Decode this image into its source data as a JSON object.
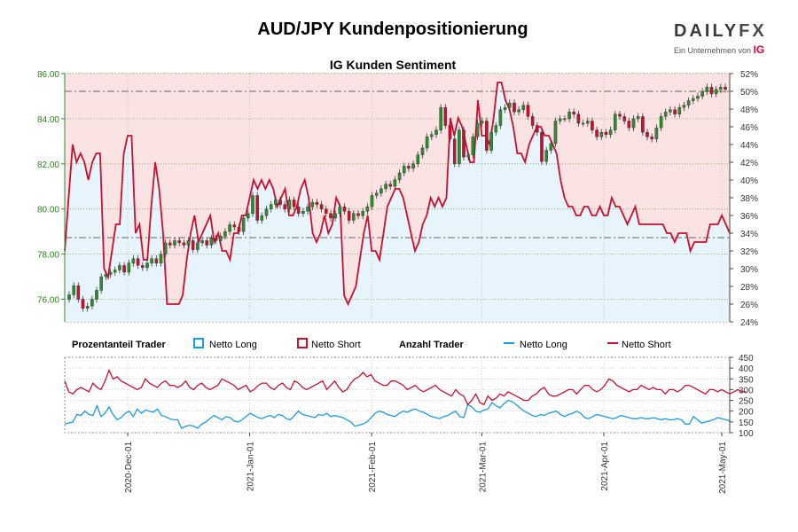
{
  "header": {
    "title": "AUD/JPY Kundenpositionierung",
    "logo_word_a": "DAILY",
    "logo_word_b": "FX",
    "logo_sub": "Ein Unternehmen von",
    "logo_ig": "IG"
  },
  "chart_data": [
    {
      "type": "line",
      "title": "IG Kunden Sentiment",
      "left_axis": {
        "ylim": [
          75,
          86
        ],
        "ticks": [
          "76.00",
          "78.00",
          "80.00",
          "82.00",
          "84.00",
          "86.00"
        ],
        "tick_values": [
          76,
          78,
          80,
          82,
          84,
          86
        ]
      },
      "right_axis": {
        "ylim": [
          24,
          52
        ],
        "ticks": [
          "24%",
          "26%",
          "28%",
          "30%",
          "32%",
          "34%",
          "36%",
          "38%",
          "40%",
          "42%",
          "44%",
          "46%",
          "48%",
          "50%",
          "52%"
        ],
        "tick_values": [
          24,
          26,
          28,
          30,
          32,
          34,
          36,
          38,
          40,
          42,
          44,
          46,
          48,
          50,
          52
        ]
      },
      "reference_lines_pct": [
        50,
        33.5
      ],
      "x_dates": [
        "2020-Dec-01",
        "2021-Jan-01",
        "2021-Feb-01",
        "2021-Mar-01",
        "2021-Apr-01",
        "2021-May-01"
      ],
      "x_date_day_index": [
        16,
        47,
        78,
        106,
        137,
        167
      ],
      "net_long_pct": [
        32,
        38,
        44,
        42,
        43,
        42,
        40,
        42,
        43,
        43,
        30,
        29,
        32,
        35,
        35,
        43,
        45,
        45,
        34,
        35,
        31,
        31,
        37,
        42,
        39,
        34,
        26,
        26,
        26,
        26,
        27,
        31,
        34,
        36,
        33,
        34,
        35,
        36,
        33,
        34,
        32,
        32,
        31,
        34,
        34,
        36,
        36,
        38,
        40,
        39,
        40,
        39,
        40,
        39,
        37,
        38,
        39,
        36,
        36,
        37,
        39,
        40,
        38,
        34,
        33,
        34,
        36,
        34,
        35,
        38,
        37,
        27,
        26,
        27,
        28,
        31,
        34,
        36,
        32,
        32,
        31,
        34,
        37,
        38,
        39,
        39,
        38,
        36,
        34,
        32,
        33,
        35,
        36,
        38,
        37,
        38,
        37,
        38,
        47,
        45,
        47,
        46,
        44,
        42,
        42,
        49,
        45,
        45,
        44,
        47,
        51,
        51,
        49,
        48,
        46,
        43,
        43,
        42,
        44,
        45,
        46,
        46,
        45,
        45,
        44,
        43,
        40,
        38,
        37,
        37,
        36,
        36,
        37,
        37,
        36,
        36,
        37,
        36,
        36,
        38,
        37,
        37,
        36,
        35,
        36,
        37,
        35,
        35,
        35,
        35,
        35,
        35,
        35,
        34,
        34,
        33,
        34,
        34,
        34,
        32,
        33,
        33,
        33,
        33,
        35,
        35,
        35,
        36,
        35,
        34
      ],
      "price_close": [
        76.2,
        76.6,
        76.0,
        75.6,
        75.7,
        76.0,
        76.4,
        77.0,
        77.1,
        77.2,
        77.3,
        77.5,
        77.2,
        77.6,
        77.8,
        77.5,
        77.4,
        77.6,
        77.8,
        77.6,
        78.0,
        78.5,
        78.4,
        78.6,
        78.5,
        78.4,
        78.6,
        78.2,
        78.5,
        78.6,
        78.4,
        78.7,
        78.6,
        78.8,
        79.0,
        79.3,
        79.2,
        79.0,
        79.6,
        79.8,
        80.6,
        79.5,
        79.7,
        80.0,
        80.2,
        80.4,
        80.2,
        80.0,
        80.4,
        80.1,
        79.8,
        79.9,
        80.1,
        80.3,
        80.2,
        80.0,
        79.8,
        79.6,
        79.8,
        80.1,
        79.9,
        79.5,
        79.8,
        79.7,
        79.9,
        80.1,
        80.6,
        80.7,
        80.9,
        81.1,
        81.0,
        81.3,
        81.6,
        81.9,
        81.8,
        82.0,
        82.4,
        82.7,
        83.2,
        83.3,
        83.5,
        84.5,
        83.7,
        83.1,
        82.0,
        83.5,
        82.3,
        82.4,
        83.2,
        83.8,
        83.9,
        82.6,
        83.4,
        83.7,
        84.4,
        84.5,
        84.7,
        84.3,
        84.4,
        84.6,
        84.1,
        83.7,
        83.4,
        82.1,
        82.6,
        82.9,
        83.9,
        84.0,
        84.0,
        84.3,
        84.2,
        83.8,
        83.8,
        83.9,
        83.5,
        83.2,
        83.4,
        83.3,
        83.5,
        84.2,
        84.1,
        83.9,
        83.6,
        84.0,
        84.1,
        83.4,
        83.2,
        83.1,
        83.6,
        84.1,
        84.3,
        84.4,
        84.2,
        84.5,
        84.6,
        84.8,
        84.9,
        85.0,
        85.2,
        85.4,
        85.1,
        85.3,
        85.4,
        85.3
      ],
      "legend": {
        "pct_title": "Prozentanteil Trader",
        "long": "Netto Long",
        "short": "Netto Short",
        "count_title": "Anzahl Trader"
      },
      "colors": {
        "long": "#1a9ae8",
        "short": "#c8102e",
        "long_fill": "#e8f4fb",
        "short_fill": "#fbe3e3",
        "price_up": "#2e8b2e",
        "price_down": "#c8102e"
      }
    },
    {
      "type": "line",
      "title": "Anzahl Trader",
      "ylim": [
        100,
        450
      ],
      "ticks": [
        "100",
        "150",
        "200",
        "250",
        "300",
        "350",
        "400",
        "450"
      ],
      "tick_values": [
        100,
        150,
        200,
        250,
        300,
        350,
        400,
        450
      ],
      "net_long_count": [
        140,
        145,
        150,
        185,
        180,
        200,
        185,
        180,
        225,
        175,
        190,
        220,
        185,
        160,
        170,
        190,
        200,
        175,
        210,
        190,
        205,
        200,
        195,
        210,
        180,
        175,
        165,
        160,
        160,
        120,
        130,
        135,
        130,
        120,
        140,
        150,
        165,
        180,
        170,
        160,
        175,
        170,
        155,
        150,
        160,
        175,
        190,
        180,
        170,
        165,
        175,
        180,
        170,
        185,
        180,
        165,
        160,
        180,
        200,
        185,
        180,
        175,
        170,
        185,
        180,
        190,
        175,
        180,
        175,
        170,
        160,
        150,
        130,
        135,
        140,
        150,
        170,
        190,
        200,
        195,
        185,
        180,
        175,
        190,
        200,
        195,
        205,
        210,
        200,
        195,
        185,
        175,
        170,
        165,
        175,
        180,
        190,
        200,
        175,
        170,
        230,
        220,
        200,
        195,
        205,
        210,
        240,
        225,
        215,
        235,
        250,
        245,
        230,
        215,
        200,
        190,
        180,
        175,
        185,
        180,
        190,
        195,
        200,
        185,
        175,
        185,
        190,
        200,
        190,
        170,
        165,
        175,
        185,
        180,
        175,
        170,
        165,
        170,
        180,
        175,
        170,
        165,
        165,
        170,
        165,
        165,
        170,
        165,
        160,
        165,
        160,
        160,
        165,
        160,
        140,
        140,
        175,
        160,
        145,
        150,
        155,
        160,
        170,
        165,
        160,
        155
      ],
      "net_short_count": [
        340,
        290,
        280,
        300,
        310,
        300,
        290,
        330,
        310,
        300,
        340,
        390,
        350,
        360,
        340,
        330,
        320,
        310,
        300,
        310,
        350,
        330,
        320,
        310,
        330,
        340,
        320,
        320,
        310,
        320,
        340,
        310,
        300,
        320,
        330,
        310,
        300,
        310,
        320,
        350,
        340,
        330,
        320,
        300,
        310,
        320,
        290,
        300,
        320,
        330,
        330,
        310,
        300,
        320,
        330,
        310,
        300,
        340,
        330,
        310,
        300,
        310,
        320,
        330,
        340,
        300,
        320,
        340,
        310,
        290,
        300,
        330,
        350,
        360,
        380,
        360,
        370,
        340,
        330,
        320,
        320,
        340,
        340,
        330,
        320,
        300,
        310,
        320,
        300,
        290,
        300,
        310,
        320,
        300,
        290,
        280,
        270,
        300,
        280,
        270,
        230,
        250,
        280,
        240,
        230,
        270,
        250,
        260,
        280,
        270,
        290,
        280,
        270,
        260,
        250,
        250,
        270,
        280,
        300,
        310,
        280,
        270,
        270,
        280,
        290,
        300,
        300,
        280,
        300,
        320,
        320,
        300,
        290,
        300,
        320,
        350,
        340,
        320,
        310,
        300,
        290,
        300,
        300,
        320,
        310,
        300,
        310,
        300,
        300,
        280,
        300,
        300,
        290,
        300,
        320,
        320,
        310,
        300,
        290,
        280,
        300,
        300,
        290,
        300,
        290,
        280,
        290,
        300,
        290,
        290
      ]
    }
  ]
}
